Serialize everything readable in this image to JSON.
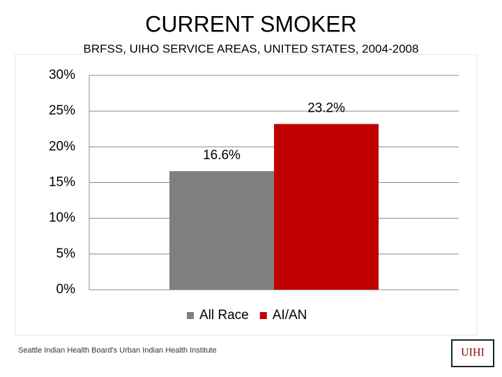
{
  "chart_data": {
    "type": "bar",
    "title": "CURRENT SMOKER",
    "subtitle": "BRFSS, UIHO SERVICE AREAS, UNITED STATES, 2004-2008",
    "categories": [
      null
    ],
    "series": [
      {
        "name": "All Race",
        "color": "#808080",
        "values": [
          16.6
        ],
        "value_labels": [
          "16.6%"
        ]
      },
      {
        "name": "AI/AN",
        "color": "#c00000",
        "values": [
          23.2
        ],
        "value_labels": [
          "23.2%"
        ]
      }
    ],
    "ylim": [
      0,
      30
    ],
    "yticks": [
      {
        "value": 0,
        "label": "0%"
      },
      {
        "value": 5,
        "label": "5%"
      },
      {
        "value": 10,
        "label": "10%"
      },
      {
        "value": 15,
        "label": "15%"
      },
      {
        "value": 20,
        "label": "20%"
      },
      {
        "value": 25,
        "label": "25%"
      },
      {
        "value": 30,
        "label": "30%"
      }
    ],
    "grid": true,
    "legend": "bottom"
  },
  "footer": "Seattle Indian Health Board's Urban Indian Health Institute",
  "logo": "UIHI"
}
